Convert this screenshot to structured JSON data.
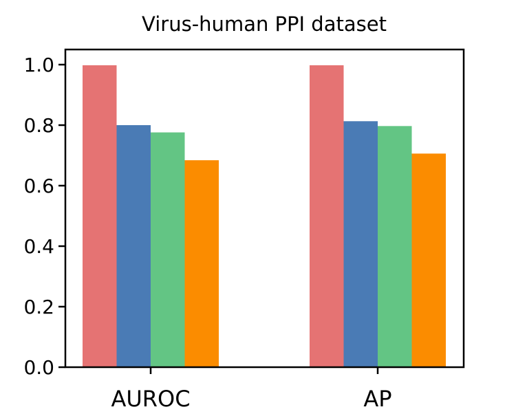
{
  "chart_data": {
    "type": "bar",
    "title": "Virus-human PPI dataset",
    "xlabel": "",
    "ylabel": "",
    "categories": [
      "AUROC",
      "AP"
    ],
    "series": [
      {
        "values": [
          0.998,
          0.998
        ],
        "color": "#e57373"
      },
      {
        "values": [
          0.8,
          0.813
        ],
        "color": "#4a7bb5"
      },
      {
        "values": [
          0.776,
          0.797
        ],
        "color": "#63c584"
      },
      {
        "values": [
          0.684,
          0.706
        ],
        "color": "#fb8c00"
      }
    ],
    "yticks": [
      "0.0",
      "0.2",
      "0.4",
      "0.6",
      "0.8",
      "1.0"
    ],
    "ylim": [
      0,
      1.05
    ],
    "grid": false,
    "legend": "none"
  }
}
